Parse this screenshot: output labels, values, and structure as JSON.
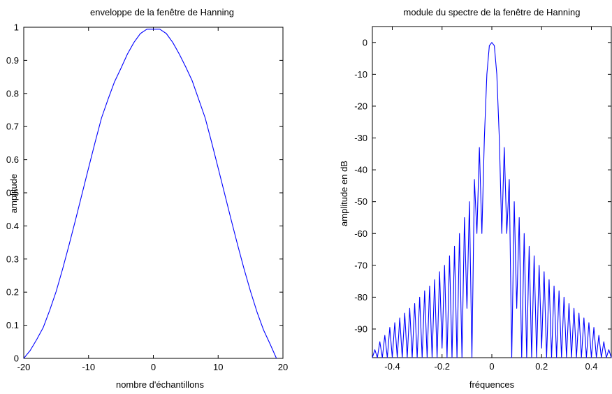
{
  "colors": {
    "line": "#0000ff",
    "axes": "#000000",
    "background": "#ffffff"
  },
  "chart_data": [
    {
      "type": "line",
      "title": "enveloppe de la fenêtre de Hanning",
      "xlabel": "nombre d'échantillons",
      "ylabel": "amplitude",
      "xlim": [
        -20,
        20
      ],
      "ylim": [
        0,
        1
      ],
      "xticks": [
        -20,
        -10,
        0,
        10,
        20
      ],
      "xtick_labels": [
        "-20",
        "-10",
        "0",
        "10",
        "20"
      ],
      "yticks": [
        0,
        0.1,
        0.2,
        0.3,
        0.4,
        0.5,
        0.6,
        0.7,
        0.8,
        0.9,
        1
      ],
      "ytick_labels": [
        "0",
        "0.1",
        "0.2",
        "0.3",
        "0.4",
        "0.5",
        "0.6",
        "0.7",
        "0.8",
        "0.9",
        "1"
      ],
      "grid": false,
      "series": [
        {
          "x": [
            -20,
            -19,
            -18,
            -17,
            -16,
            -15,
            -14,
            -13,
            -12,
            -11,
            -10,
            -9,
            -8,
            -7,
            -6,
            -5,
            -4,
            -3,
            -2,
            -1,
            0,
            1,
            2,
            3,
            4,
            5,
            6,
            7,
            8,
            9,
            10,
            11,
            12,
            13,
            14,
            15,
            16,
            17,
            18,
            19
          ],
          "values": [
            0.0,
            0.024,
            0.057,
            0.093,
            0.145,
            0.202,
            0.27,
            0.343,
            0.419,
            0.497,
            0.575,
            0.652,
            0.726,
            0.782,
            0.835,
            0.876,
            0.919,
            0.954,
            0.981,
            0.994,
            0.994,
            0.994,
            0.981,
            0.954,
            0.919,
            0.88,
            0.838,
            0.782,
            0.726,
            0.652,
            0.575,
            0.497,
            0.419,
            0.343,
            0.27,
            0.202,
            0.14,
            0.086,
            0.044,
            0.0
          ]
        }
      ]
    },
    {
      "type": "line",
      "title": "module du spectre de la fenêtre de Hanning",
      "xlabel": "fréquences",
      "ylabel": "amplitude en dB",
      "xlim": [
        -0.48,
        0.48
      ],
      "ylim": [
        -99,
        5
      ],
      "xticks": [
        -0.4,
        -0.2,
        0,
        0.2,
        0.4
      ],
      "xtick_labels": [
        "-0.4",
        "-0.2",
        "0",
        "0.2",
        "0.4"
      ],
      "yticks": [
        0,
        -10,
        -20,
        -30,
        -40,
        -50,
        -60,
        -70,
        -80,
        -90
      ],
      "ytick_labels": [
        "0",
        "-10",
        "-20",
        "-30",
        "-40",
        "-50",
        "-60",
        "-70",
        "-80",
        "-90"
      ],
      "grid": false,
      "series": [
        {
          "description_free": true,
          "x": [
            -0.48,
            -0.47,
            -0.46,
            -0.45,
            -0.44,
            -0.43,
            -0.42,
            -0.41,
            -0.4,
            -0.39,
            -0.38,
            -0.37,
            -0.36,
            -0.35,
            -0.34,
            -0.33,
            -0.32,
            -0.31,
            -0.3,
            -0.29,
            -0.28,
            -0.27,
            -0.26,
            -0.25,
            -0.24,
            -0.23,
            -0.22,
            -0.21,
            -0.2,
            -0.19,
            -0.18,
            -0.17,
            -0.16,
            -0.15,
            -0.14,
            -0.13,
            -0.12,
            -0.11,
            -0.1,
            -0.09,
            -0.08,
            -0.07,
            -0.06,
            -0.05,
            -0.04,
            -0.03,
            -0.02,
            -0.01,
            0,
            0.01,
            0.02,
            0.03,
            0.04,
            0.05,
            0.06,
            0.07,
            0.08,
            0.09,
            0.1,
            0.11,
            0.12,
            0.13,
            0.14,
            0.15,
            0.16,
            0.17,
            0.18,
            0.19,
            0.2,
            0.21,
            0.22,
            0.23,
            0.24,
            0.25,
            0.26,
            0.27,
            0.28,
            0.29,
            0.3,
            0.31,
            0.32,
            0.33,
            0.34,
            0.35,
            0.36,
            0.37,
            0.38,
            0.39,
            0.4,
            0.41,
            0.42,
            0.43,
            0.44,
            0.45,
            0.46,
            0.47,
            0.48
          ],
          "values": [
            -99,
            -96.5,
            -99,
            -94,
            -99,
            -92,
            -99,
            -89.5,
            -99,
            -88,
            -99,
            -86.5,
            -99,
            -85,
            -99,
            -83.5,
            -99,
            -82,
            -99,
            -80,
            -99,
            -78,
            -99,
            -76.5,
            -99,
            -74.5,
            -99,
            -72,
            -96,
            -70,
            -99,
            -67,
            -99,
            -64,
            -99,
            -60,
            -99,
            -55,
            -83.5,
            -50,
            -99,
            -43,
            -60,
            -33,
            -60,
            -30,
            -10,
            -1,
            0,
            -1,
            -10,
            -30,
            -60,
            -33,
            -60,
            -43,
            -99,
            -50,
            -83.5,
            -55,
            -99,
            -60,
            -99,
            -64,
            -99,
            -67,
            -99,
            -70,
            -96,
            -72,
            -99,
            -74.5,
            -99,
            -76.5,
            -99,
            -78,
            -99,
            -80,
            -99,
            -82,
            -99,
            -83.5,
            -99,
            -85,
            -99,
            -86.5,
            -99,
            -88,
            -99,
            -89.5,
            -99,
            -92,
            -99,
            -94,
            -99,
            -96.5,
            -99
          ]
        }
      ]
    }
  ]
}
